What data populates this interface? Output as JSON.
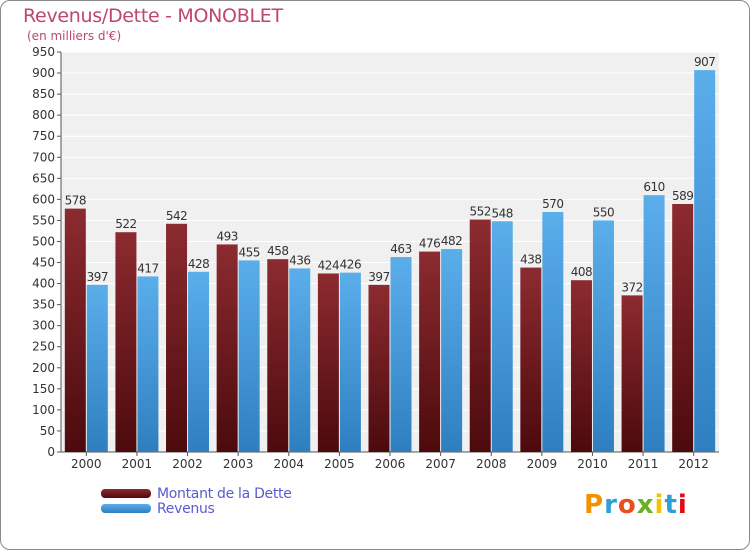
{
  "title": "Revenus/Dette - MONOBLET",
  "subtitle": "(en milliers d'€)",
  "logo": {
    "text": "Proxiti",
    "colors": [
      "#f39200",
      "#2f9fd8",
      "#e94e1b",
      "#6ab023",
      "#f0c400",
      "#2f9fd8",
      "#e30613"
    ]
  },
  "colors": {
    "dette": "#7a2024",
    "revenus": "#4ea2e0",
    "title": "#c0466a",
    "legend_text": "#5a5ad2"
  },
  "chart_data": {
    "type": "bar",
    "title": "Revenus/Dette - MONOBLET",
    "subtitle": "(en milliers d'€)",
    "categories": [
      "2000",
      "2001",
      "2002",
      "2003",
      "2004",
      "2005",
      "2006",
      "2007",
      "2008",
      "2009",
      "2010",
      "2011",
      "2012"
    ],
    "series": [
      {
        "name": "Montant de la Dette",
        "color": "#7a2024",
        "values": [
          578,
          522,
          542,
          493,
          458,
          424,
          397,
          476,
          552,
          438,
          408,
          372,
          589
        ]
      },
      {
        "name": "Revenus",
        "color": "#4ea2e0",
        "values": [
          397,
          417,
          428,
          455,
          436,
          426,
          463,
          482,
          548,
          570,
          550,
          610,
          907
        ]
      }
    ],
    "ylim": [
      0,
      950
    ],
    "yticks": [
      "0",
      "50",
      "100",
      "150",
      "200",
      "250",
      "300",
      "350",
      "400",
      "450",
      "500",
      "550",
      "600",
      "650",
      "700",
      "750",
      "800",
      "850",
      "900",
      "950"
    ],
    "grid": true,
    "legend_position": "bottom-left"
  }
}
